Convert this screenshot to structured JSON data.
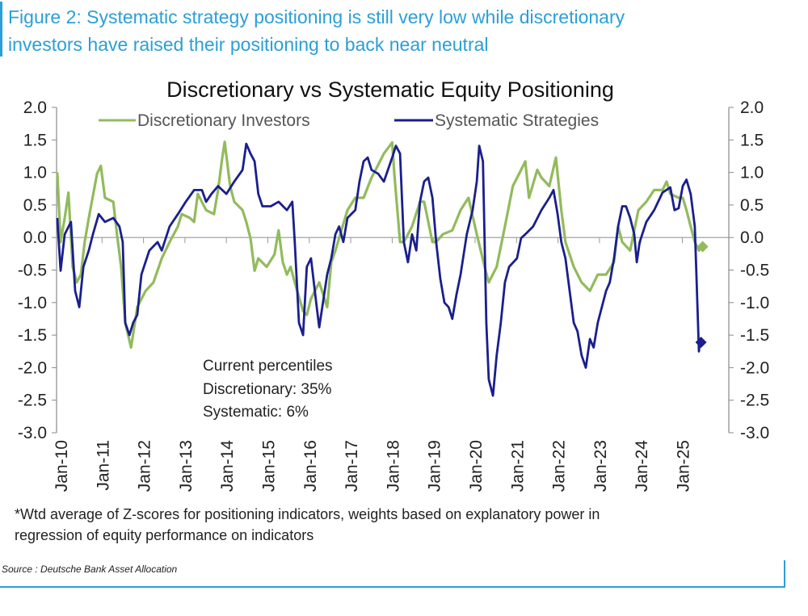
{
  "figure": {
    "caption_line1": "Figure 2: Systematic strategy positioning is still very low while discretionary",
    "caption_line2": "investors have raised their positioning to back near neutral",
    "footnote_line1": "*Wtd average of Z-scores for positioning indicators, weights based on explanatory power in",
    "footnote_line2": "regression of equity performance on indicators",
    "source": "Source : Deutsche Bank Asset Allocation",
    "accent_color": "#2b9fd6"
  },
  "chart_data": {
    "type": "line",
    "title": "Discretionary  vs Systematic Equity Positioning",
    "xlabel": "",
    "ylabel": "",
    "ylim": [
      -3.0,
      2.0
    ],
    "yticks": [
      "2.0",
      "1.5",
      "1.0",
      "0.5",
      "0.0",
      "-0.5",
      "-1.0",
      "-1.5",
      "-2.0",
      "-2.5",
      "-3.0"
    ],
    "ytick_values": [
      2.0,
      1.5,
      1.0,
      0.5,
      0.0,
      -0.5,
      -1.0,
      -1.5,
      -2.0,
      -2.5,
      -3.0
    ],
    "xticks": [
      "Jan-10",
      "Jan-11",
      "Jan-12",
      "Jan-13",
      "Jan-14",
      "Jan-15",
      "Jan-16",
      "Jan-17",
      "Jan-18",
      "Jan-19",
      "Jan-20",
      "Jan-21",
      "Jan-22",
      "Jan-23",
      "Jan-24",
      "Jan-25"
    ],
    "xtick_values": [
      2010,
      2011,
      2012,
      2013,
      2014,
      2015,
      2016,
      2017,
      2018,
      2019,
      2020,
      2021,
      2022,
      2023,
      2024,
      2025
    ],
    "xlim": [
      2009.9,
      2026.1
    ],
    "legend_position": "top-center",
    "annotation": {
      "title": "Current percentiles",
      "line1": "Discretionary: 35%",
      "line2": "Systematic: 6%"
    },
    "series": [
      {
        "name": "Discretionary Investors",
        "color": "#92bb5c",
        "points": [
          [
            2009.92,
            1.0
          ],
          [
            2010.0,
            -0.07
          ],
          [
            2010.1,
            0.3
          ],
          [
            2010.19,
            0.69
          ],
          [
            2010.29,
            -0.45
          ],
          [
            2010.39,
            -0.69
          ],
          [
            2010.49,
            -0.57
          ],
          [
            2010.58,
            -0.07
          ],
          [
            2010.68,
            0.3
          ],
          [
            2010.88,
            0.98
          ],
          [
            2010.97,
            1.1
          ],
          [
            2011.07,
            0.61
          ],
          [
            2011.27,
            0.55
          ],
          [
            2011.36,
            0.05
          ],
          [
            2011.46,
            -0.45
          ],
          [
            2011.56,
            -1.31
          ],
          [
            2011.7,
            -1.69
          ],
          [
            2011.85,
            -1.07
          ],
          [
            2012.05,
            -0.82
          ],
          [
            2012.24,
            -0.69
          ],
          [
            2012.44,
            -0.32
          ],
          [
            2012.63,
            -0.07
          ],
          [
            2012.83,
            0.17
          ],
          [
            2012.92,
            0.36
          ],
          [
            2013.12,
            0.3
          ],
          [
            2013.22,
            0.24
          ],
          [
            2013.31,
            0.67
          ],
          [
            2013.51,
            0.42
          ],
          [
            2013.7,
            0.36
          ],
          [
            2013.8,
            0.73
          ],
          [
            2013.9,
            1.23
          ],
          [
            2013.96,
            1.47
          ],
          [
            2014.09,
            0.79
          ],
          [
            2014.19,
            0.55
          ],
          [
            2014.39,
            0.42
          ],
          [
            2014.48,
            0.24
          ],
          [
            2014.58,
            -0.01
          ],
          [
            2014.68,
            -0.51
          ],
          [
            2014.77,
            -0.32
          ],
          [
            2014.97,
            -0.45
          ],
          [
            2015.16,
            -0.26
          ],
          [
            2015.26,
            0.11
          ],
          [
            2015.36,
            -0.38
          ],
          [
            2015.46,
            -0.57
          ],
          [
            2015.55,
            -0.45
          ],
          [
            2015.65,
            -0.69
          ],
          [
            2015.85,
            -1.13
          ],
          [
            2015.94,
            -1.19
          ],
          [
            2016.04,
            -0.94
          ],
          [
            2016.24,
            -0.69
          ],
          [
            2016.43,
            -1.07
          ],
          [
            2016.53,
            -0.38
          ],
          [
            2016.63,
            -0.2
          ],
          [
            2016.72,
            -0.01
          ],
          [
            2016.92,
            0.42
          ],
          [
            2017.11,
            0.61
          ],
          [
            2017.31,
            0.61
          ],
          [
            2017.5,
            0.92
          ],
          [
            2017.6,
            1.04
          ],
          [
            2017.8,
            1.29
          ],
          [
            2018.0,
            1.46
          ],
          [
            2018.05,
            0.98
          ],
          [
            2018.19,
            -0.07
          ],
          [
            2018.28,
            -0.07
          ],
          [
            2018.38,
            0.05
          ],
          [
            2018.48,
            0.17
          ],
          [
            2018.67,
            0.55
          ],
          [
            2018.77,
            0.55
          ],
          [
            2018.97,
            -0.07
          ],
          [
            2019.06,
            -0.07
          ],
          [
            2019.22,
            0.05
          ],
          [
            2019.45,
            0.11
          ],
          [
            2019.65,
            0.42
          ],
          [
            2019.84,
            0.61
          ],
          [
            2020.04,
            0.05
          ],
          [
            2020.23,
            -0.45
          ],
          [
            2020.33,
            -0.69
          ],
          [
            2020.52,
            -0.45
          ],
          [
            2020.72,
            0.17
          ],
          [
            2020.91,
            0.79
          ],
          [
            2021.11,
            1.04
          ],
          [
            2021.21,
            1.17
          ],
          [
            2021.3,
            0.61
          ],
          [
            2021.5,
            1.04
          ],
          [
            2021.6,
            0.92
          ],
          [
            2021.79,
            0.79
          ],
          [
            2021.95,
            1.23
          ],
          [
            2022.08,
            0.42
          ],
          [
            2022.18,
            -0.07
          ],
          [
            2022.38,
            -0.45
          ],
          [
            2022.57,
            -0.69
          ],
          [
            2022.77,
            -0.82
          ],
          [
            2022.96,
            -0.57
          ],
          [
            2023.16,
            -0.57
          ],
          [
            2023.35,
            -0.38
          ],
          [
            2023.45,
            0.17
          ],
          [
            2023.55,
            -0.07
          ],
          [
            2023.74,
            -0.2
          ],
          [
            2023.94,
            0.42
          ],
          [
            2024.13,
            0.55
          ],
          [
            2024.32,
            0.73
          ],
          [
            2024.52,
            0.73
          ],
          [
            2024.62,
            0.86
          ],
          [
            2024.71,
            0.67
          ],
          [
            2024.91,
            0.61
          ],
          [
            2025.01,
            0.61
          ],
          [
            2025.1,
            0.42
          ],
          [
            2025.2,
            0.17
          ],
          [
            2025.3,
            -0.07
          ],
          [
            2025.4,
            -0.2
          ],
          [
            2025.49,
            -0.14
          ]
        ]
      },
      {
        "name": "Systematic Strategies",
        "color": "#1a1f8c",
        "points": [
          [
            2009.92,
            0.3
          ],
          [
            2010.0,
            -0.51
          ],
          [
            2010.1,
            0.05
          ],
          [
            2010.25,
            0.24
          ],
          [
            2010.35,
            -0.82
          ],
          [
            2010.45,
            -1.07
          ],
          [
            2010.55,
            -0.45
          ],
          [
            2010.68,
            -0.2
          ],
          [
            2010.78,
            0.05
          ],
          [
            2010.92,
            0.36
          ],
          [
            2011.07,
            0.24
          ],
          [
            2011.27,
            0.3
          ],
          [
            2011.42,
            0.17
          ],
          [
            2011.5,
            -0.07
          ],
          [
            2011.56,
            -1.31
          ],
          [
            2011.66,
            -1.5
          ],
          [
            2011.75,
            -1.31
          ],
          [
            2011.85,
            -1.19
          ],
          [
            2011.95,
            -0.57
          ],
          [
            2012.14,
            -0.2
          ],
          [
            2012.34,
            -0.07
          ],
          [
            2012.44,
            -0.2
          ],
          [
            2012.63,
            0.17
          ],
          [
            2012.83,
            0.36
          ],
          [
            2013.02,
            0.55
          ],
          [
            2013.22,
            0.73
          ],
          [
            2013.41,
            0.73
          ],
          [
            2013.51,
            0.55
          ],
          [
            2013.64,
            0.67
          ],
          [
            2013.8,
            0.79
          ],
          [
            2014.0,
            0.67
          ],
          [
            2014.19,
            0.86
          ],
          [
            2014.39,
            1.04
          ],
          [
            2014.48,
            1.44
          ],
          [
            2014.58,
            1.29
          ],
          [
            2014.68,
            1.17
          ],
          [
            2014.77,
            0.67
          ],
          [
            2014.87,
            0.48
          ],
          [
            2015.07,
            0.48
          ],
          [
            2015.26,
            0.55
          ],
          [
            2015.46,
            0.42
          ],
          [
            2015.59,
            0.55
          ],
          [
            2015.65,
            -0.07
          ],
          [
            2015.75,
            -1.31
          ],
          [
            2015.85,
            -1.5
          ],
          [
            2015.94,
            -0.45
          ],
          [
            2016.04,
            -0.32
          ],
          [
            2016.18,
            -1.07
          ],
          [
            2016.24,
            -1.38
          ],
          [
            2016.33,
            -1.0
          ],
          [
            2016.43,
            -0.57
          ],
          [
            2016.53,
            -0.32
          ],
          [
            2016.63,
            0.05
          ],
          [
            2016.72,
            0.17
          ],
          [
            2016.82,
            -0.07
          ],
          [
            2016.92,
            0.3
          ],
          [
            2017.11,
            0.42
          ],
          [
            2017.21,
            0.86
          ],
          [
            2017.31,
            1.17
          ],
          [
            2017.41,
            1.23
          ],
          [
            2017.5,
            1.04
          ],
          [
            2017.66,
            0.98
          ],
          [
            2017.8,
            0.86
          ],
          [
            2018.0,
            1.23
          ],
          [
            2018.09,
            1.41
          ],
          [
            2018.19,
            1.29
          ],
          [
            2018.28,
            -0.07
          ],
          [
            2018.38,
            -0.38
          ],
          [
            2018.48,
            0.05
          ],
          [
            2018.58,
            -0.2
          ],
          [
            2018.67,
            0.55
          ],
          [
            2018.77,
            0.86
          ],
          [
            2018.87,
            0.92
          ],
          [
            2018.97,
            0.61
          ],
          [
            2019.06,
            -0.07
          ],
          [
            2019.16,
            -0.63
          ],
          [
            2019.26,
            -1.0
          ],
          [
            2019.36,
            -1.07
          ],
          [
            2019.45,
            -1.25
          ],
          [
            2019.55,
            -0.88
          ],
          [
            2019.65,
            -0.57
          ],
          [
            2019.8,
            0.05
          ],
          [
            2019.94,
            0.42
          ],
          [
            2020.04,
            0.86
          ],
          [
            2020.1,
            1.41
          ],
          [
            2020.19,
            1.17
          ],
          [
            2020.27,
            -1.31
          ],
          [
            2020.33,
            -2.18
          ],
          [
            2020.43,
            -2.43
          ],
          [
            2020.52,
            -1.81
          ],
          [
            2020.62,
            -1.31
          ],
          [
            2020.72,
            -0.69
          ],
          [
            2020.82,
            -0.45
          ],
          [
            2021.01,
            -0.32
          ],
          [
            2021.11,
            -0.01
          ],
          [
            2021.21,
            0.05
          ],
          [
            2021.4,
            0.17
          ],
          [
            2021.6,
            0.42
          ],
          [
            2021.79,
            0.61
          ],
          [
            2021.89,
            0.73
          ],
          [
            2021.99,
            0.36
          ],
          [
            2022.08,
            -0.07
          ],
          [
            2022.18,
            -0.32
          ],
          [
            2022.28,
            -0.82
          ],
          [
            2022.38,
            -1.31
          ],
          [
            2022.47,
            -1.44
          ],
          [
            2022.57,
            -1.81
          ],
          [
            2022.67,
            -2.0
          ],
          [
            2022.77,
            -1.56
          ],
          [
            2022.86,
            -1.69
          ],
          [
            2022.96,
            -1.31
          ],
          [
            2023.16,
            -0.82
          ],
          [
            2023.25,
            -0.69
          ],
          [
            2023.35,
            -0.32
          ],
          [
            2023.45,
            0.17
          ],
          [
            2023.55,
            0.48
          ],
          [
            2023.64,
            0.48
          ],
          [
            2023.74,
            0.3
          ],
          [
            2023.84,
            0.05
          ],
          [
            2023.9,
            -0.38
          ],
          [
            2023.97,
            -0.07
          ],
          [
            2024.13,
            0.24
          ],
          [
            2024.32,
            0.42
          ],
          [
            2024.52,
            0.69
          ],
          [
            2024.71,
            0.77
          ],
          [
            2024.81,
            0.42
          ],
          [
            2024.91,
            0.45
          ],
          [
            2025.01,
            0.79
          ],
          [
            2025.1,
            0.89
          ],
          [
            2025.2,
            0.67
          ],
          [
            2025.3,
            0.17
          ],
          [
            2025.34,
            -0.57
          ],
          [
            2025.4,
            -1.75
          ],
          [
            2025.43,
            -1.56
          ],
          [
            2025.45,
            -1.61
          ]
        ]
      }
    ]
  }
}
